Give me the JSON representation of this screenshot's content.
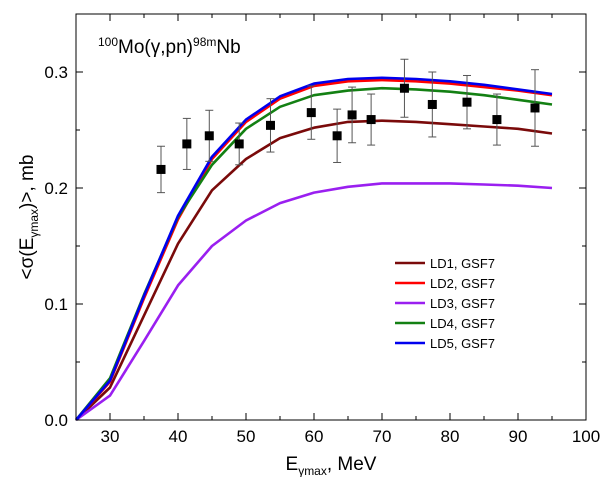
{
  "chart_data": {
    "type": "line",
    "title_parts": {
      "mass_number": "100",
      "target": "Mo(",
      "particle": "γ",
      "reaction": ",pn)",
      "product_mass": "98m",
      "product": "Nb"
    },
    "xlabel": {
      "main": "E",
      "sub": "γmax",
      "rest": ", MeV"
    },
    "ylabel": {
      "prefix": "<σ(E",
      "sub": "γmax",
      "suffix": ")>, mb"
    },
    "xlim": [
      25,
      100
    ],
    "ylim": [
      0.0,
      0.35
    ],
    "xticks": [
      30,
      40,
      50,
      60,
      70,
      80,
      90,
      100
    ],
    "yticks": [
      0.0,
      0.1,
      0.2,
      0.3
    ],
    "ytick_labels": [
      "0.0",
      "0.1",
      "0.2",
      "0.3"
    ],
    "legend_position": "right",
    "grid": false,
    "x": [
      25,
      30,
      35,
      40,
      45,
      50,
      55,
      60,
      65,
      70,
      75,
      80,
      85,
      90,
      95
    ],
    "series": [
      {
        "name": "LD1, GSF7",
        "color": "#7a0a0a",
        "values": [
          0.0,
          0.028,
          0.09,
          0.152,
          0.198,
          0.225,
          0.243,
          0.252,
          0.257,
          0.258,
          0.257,
          0.255,
          0.253,
          0.251,
          0.247
        ]
      },
      {
        "name": "LD2, GSF7",
        "color": "#ff0000",
        "values": [
          0.0,
          0.033,
          0.105,
          0.173,
          0.225,
          0.257,
          0.277,
          0.288,
          0.292,
          0.293,
          0.292,
          0.29,
          0.287,
          0.284,
          0.28
        ]
      },
      {
        "name": "LD3, GSF7",
        "color": "#9a1ff0",
        "values": [
          0.0,
          0.021,
          0.068,
          0.116,
          0.15,
          0.172,
          0.187,
          0.196,
          0.201,
          0.204,
          0.204,
          0.204,
          0.203,
          0.202,
          0.2
        ]
      },
      {
        "name": "LD4, GSF7",
        "color": "#138013",
        "values": [
          0.0,
          0.036,
          0.108,
          0.175,
          0.22,
          0.251,
          0.27,
          0.28,
          0.284,
          0.286,
          0.285,
          0.283,
          0.28,
          0.276,
          0.272
        ]
      },
      {
        "name": "LD5, GSF7",
        "color": "#0000ee",
        "values": [
          0.0,
          0.034,
          0.107,
          0.176,
          0.227,
          0.259,
          0.279,
          0.29,
          0.294,
          0.295,
          0.294,
          0.292,
          0.289,
          0.285,
          0.281
        ]
      }
    ],
    "experiment": {
      "x": [
        37.5,
        41.3,
        44.6,
        49.0,
        53.6,
        59.6,
        63.4,
        65.6,
        68.4,
        73.3,
        77.4,
        82.5,
        86.9,
        92.5
      ],
      "y": [
        0.216,
        0.238,
        0.245,
        0.238,
        0.254,
        0.265,
        0.245,
        0.263,
        0.259,
        0.286,
        0.272,
        0.274,
        0.259,
        0.269
      ],
      "err": [
        0.02,
        0.022,
        0.022,
        0.018,
        0.023,
        0.023,
        0.023,
        0.024,
        0.022,
        0.025,
        0.028,
        0.023,
        0.022,
        0.033
      ],
      "color": "#000000"
    }
  }
}
